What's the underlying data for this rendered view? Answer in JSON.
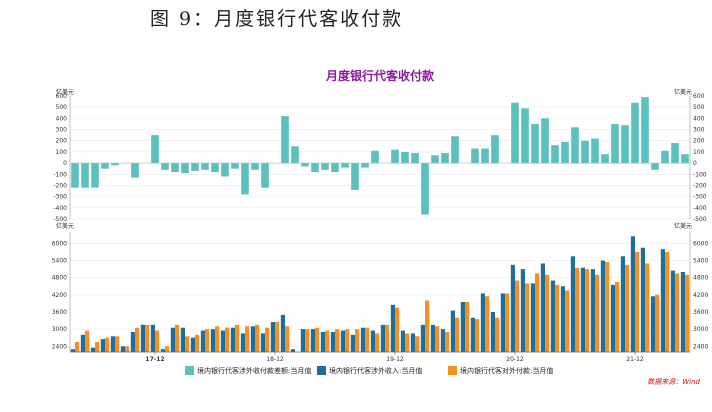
{
  "figure_caption": "图 9：月度银行代客收付款",
  "source_note": "数据来源：Wind",
  "colors": {
    "net": "#5bc0be",
    "receipts": "#1f6f9c",
    "payments": "#f39020",
    "title": "#8b1a9e",
    "source": "#cc1111"
  },
  "chart_data": {
    "type": "bar",
    "title": "月度银行代客收付款",
    "unit_label": "亿美元",
    "x_tick_labels": [
      "17-12",
      "18-12",
      "19-12",
      "20-12",
      "21-12"
    ],
    "x_tick_positions": [
      8,
      20,
      32,
      44,
      56
    ],
    "upper": {
      "ylim": [
        -500,
        600
      ],
      "ticks": [
        600,
        500,
        400,
        300,
        200,
        100,
        0,
        -100,
        -200,
        -300,
        -400,
        -500
      ],
      "series": [
        {
          "name": "境内银行代客涉外收付款差额:当月值",
          "values": [
            -220,
            -220,
            -220,
            -50,
            -20,
            0,
            -130,
            0,
            250,
            -60,
            -80,
            -90,
            -70,
            -60,
            -80,
            -120,
            -50,
            -280,
            -60,
            -220,
            0,
            420,
            150,
            -30,
            -80,
            -60,
            -80,
            -40,
            -240,
            -40,
            110,
            0,
            120,
            100,
            90,
            -460,
            70,
            90,
            240,
            0,
            130,
            130,
            250,
            0,
            540,
            490,
            350,
            400,
            160,
            190,
            320,
            200,
            220,
            80,
            350,
            340,
            540,
            590,
            -60,
            110,
            180,
            80
          ]
        }
      ]
    },
    "lower": {
      "ylim": [
        2200,
        6400
      ],
      "ticks": [
        6000,
        5400,
        4800,
        4200,
        3600,
        3000,
        2400
      ],
      "series": [
        {
          "name": "境内银行代客涉外收入:当月值",
          "values": [
            2300,
            2800,
            2350,
            2650,
            2750,
            2400,
            2900,
            3150,
            3150,
            2300,
            3050,
            3050,
            2700,
            2950,
            3000,
            2950,
            3050,
            2850,
            3100,
            2850,
            3250,
            3500,
            2300,
            3000,
            3000,
            2900,
            2900,
            2950,
            2800,
            3050,
            2950,
            3150,
            3850,
            2950,
            2850,
            3150,
            3150,
            3000,
            3650,
            3950,
            3400,
            4250,
            3600,
            4250,
            5250,
            5100,
            4600,
            5300,
            4700,
            4500,
            5550,
            5150,
            5100,
            5400,
            4550,
            5550,
            6250,
            5850,
            4150,
            5800,
            5050,
            5000
          ]
        },
        {
          "name": "境内银行代客对外付款:当月值",
          "values": [
            2550,
            2950,
            2550,
            2700,
            2750,
            2400,
            3050,
            3150,
            2950,
            2400,
            3150,
            2750,
            2800,
            3000,
            3100,
            3050,
            3150,
            3100,
            3150,
            3050,
            3250,
            3100,
            2150,
            3000,
            3050,
            2950,
            3000,
            3000,
            3000,
            3050,
            2850,
            3150,
            3750,
            2850,
            2750,
            4000,
            3100,
            2900,
            3400,
            3950,
            3350,
            4150,
            3400,
            4250,
            4700,
            4600,
            4950,
            4900,
            4550,
            4350,
            5150,
            5100,
            4900,
            5350,
            4650,
            5250,
            5700,
            5300,
            4200,
            5700,
            4950,
            4900
          ]
        }
      ]
    }
  }
}
